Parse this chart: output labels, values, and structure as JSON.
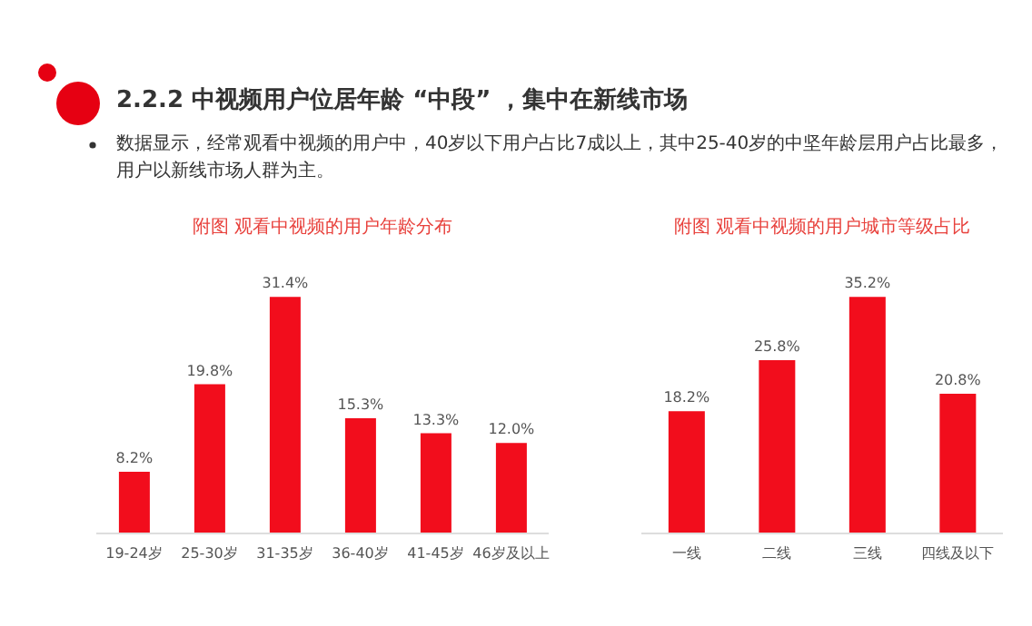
{
  "chart_data": [
    {
      "type": "other",
      "title": "2.2.2  中视频用户位居年龄 “中段” ，集中在新线市场",
      "annotations": [
        "数据显示，经常观看中视频的用户中，40岁以下用户占比7成以上，其中25-40岁的中坚年龄层用户占比最多，用户以新线市场人群为主。"
      ]
    },
    {
      "type": "bar",
      "title": "附图 观看中视频的用户年龄分布",
      "categories": [
        "19-24岁",
        "25-30岁",
        "31-35岁",
        "36-40岁",
        "41-45岁",
        "46岁及以上"
      ],
      "values": [
        8.2,
        19.8,
        31.4,
        15.3,
        13.3,
        12.0
      ],
      "value_labels": [
        "8.2%",
        "19.8%",
        "31.4%",
        "15.3%",
        "13.3%",
        "12.0%"
      ],
      "color": "#f20d1c"
    },
    {
      "type": "bar",
      "title": "附图 观看中视频的用户城市等级占比",
      "categories": [
        "一线",
        "二线",
        "三线",
        "四线及以下"
      ],
      "values": [
        18.2,
        25.8,
        35.2,
        20.8
      ],
      "value_labels": [
        "18.2%",
        "25.8%",
        "35.2%",
        "20.8%"
      ],
      "color": "#f20d1c"
    }
  ]
}
